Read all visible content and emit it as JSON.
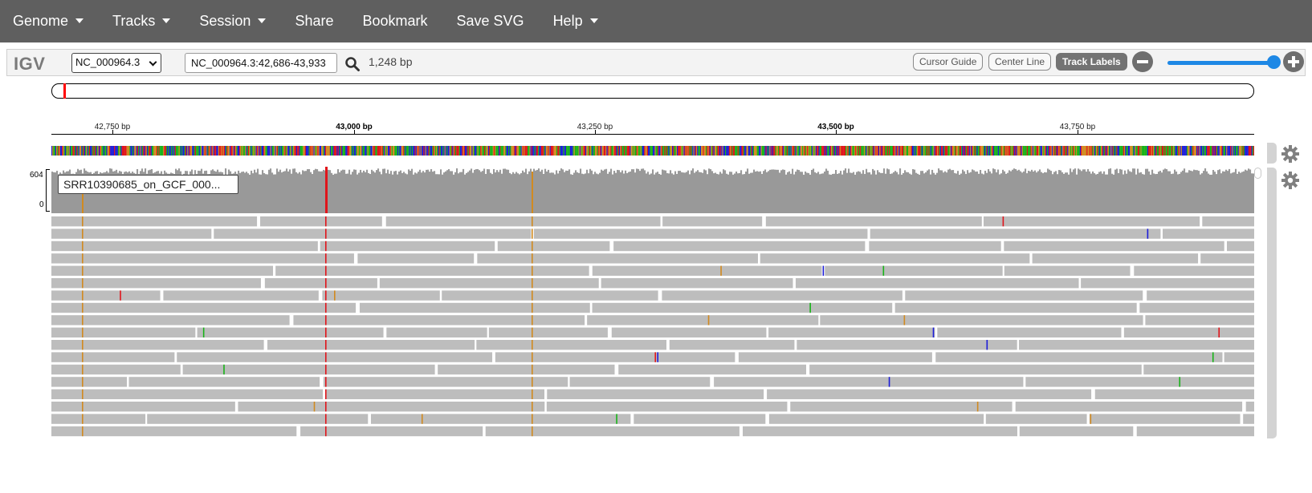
{
  "menubar": {
    "items": [
      {
        "label": "Genome",
        "dropdown": true
      },
      {
        "label": "Tracks",
        "dropdown": true
      },
      {
        "label": "Session",
        "dropdown": true
      },
      {
        "label": "Share",
        "dropdown": false
      },
      {
        "label": "Bookmark",
        "dropdown": false
      },
      {
        "label": "Save SVG",
        "dropdown": false
      },
      {
        "label": "Help",
        "dropdown": true
      }
    ]
  },
  "navbar": {
    "logo": "IGV",
    "chromosome": "NC_000964.3",
    "locus": "NC_000964.3:42,686-43,933",
    "bp_width": "1,248 bp",
    "buttons": {
      "cursor_guide": "Cursor Guide",
      "center_line": "Center Line",
      "track_labels": "Track Labels"
    },
    "track_labels_active": true,
    "zoom_level": 0.95
  },
  "ruler": {
    "ticks": [
      {
        "label": "42,750 bp",
        "major": false
      },
      {
        "label": "43,000 bp",
        "major": true
      },
      {
        "label": "43,250 bp",
        "major": false
      },
      {
        "label": "43,500 bp",
        "major": true
      },
      {
        "label": "43,750 bp",
        "major": false
      }
    ]
  },
  "coverage": {
    "max": "604",
    "min": "0",
    "track_name": "SRR10390685_on_GCF_000..."
  },
  "colors": {
    "menubar": "#5f5f5f",
    "coverage": "#999999",
    "read": "#bdbdbd",
    "mismatch_A": "#19b319",
    "mismatch_C": "#1d1dd9",
    "mismatch_G": "#d18a20",
    "mismatch_T": "#e0151b",
    "accent": "#1e88e5"
  }
}
